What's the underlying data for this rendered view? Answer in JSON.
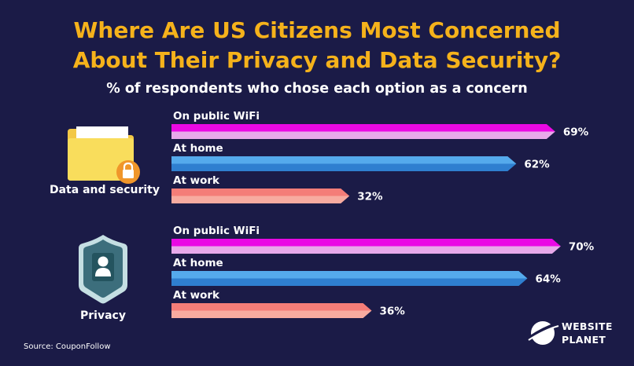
{
  "title_line1": "Where Are US Citizens Most Concerned",
  "title_line2": "About Their Privacy and Data Security?",
  "subtitle": "% of respondents who chose each option as a concern",
  "source": "Source: CouponFollow",
  "logo": {
    "line1": "WEBSITE",
    "line2": "PLANET"
  },
  "colors": {
    "background": "#1b1b47",
    "title": "#f5b21b",
    "public_wifi_top": "#ea09e4",
    "public_wifi_bottom": "#e7a9ea",
    "home_top": "#55aaec",
    "home_bottom": "#2f7fd0",
    "work_top": "#f47d78",
    "work_bottom": "#f7aba0",
    "folder": "#f9dd5c",
    "lock": "#f0962a",
    "shield": "#3c6e7c"
  },
  "chart_data": {
    "type": "bar",
    "orientation": "horizontal",
    "unit": "%",
    "groups": [
      {
        "label": "Data and security",
        "icon": "folder-lock-icon",
        "bars": [
          {
            "label": "On public WiFi",
            "value": 69,
            "display": "69%"
          },
          {
            "label": "At home",
            "value": 62,
            "display": "62%"
          },
          {
            "label": "At work",
            "value": 32,
            "display": "32%"
          }
        ]
      },
      {
        "label": "Privacy",
        "icon": "shield-user-icon",
        "bars": [
          {
            "label": "On public WiFi",
            "value": 70,
            "display": "70%"
          },
          {
            "label": "At home",
            "value": 64,
            "display": "64%"
          },
          {
            "label": "At work",
            "value": 36,
            "display": "36%"
          }
        ]
      }
    ]
  }
}
